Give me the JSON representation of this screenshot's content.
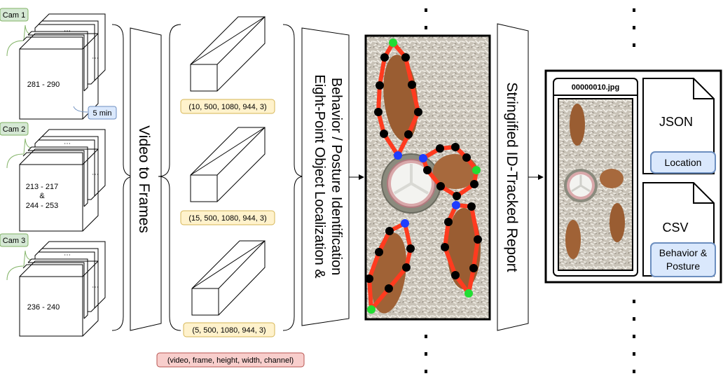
{
  "cameras": [
    {
      "label": "Cam 1",
      "range_lines": [
        "281 - 290"
      ],
      "duration": "5 min"
    },
    {
      "label": "Cam 2",
      "range_lines": [
        "213 - 217",
        "&",
        "244 - 253"
      ]
    },
    {
      "label": "Cam 3",
      "range_lines": [
        "236 - 240"
      ]
    }
  ],
  "stage_video_to_frames": "Video to Frames",
  "tensors": [
    "(10, 500, 1080, 944, 3)",
    "(15, 500, 1080, 944, 3)",
    "(5, 500, 1080, 944, 3)"
  ],
  "tensor_legend": "(video, frame, height, width, channel)",
  "stage_localization_lines": [
    "Eight-Point Object Localization &",
    "Behavior / Posture Identification"
  ],
  "stage_report": "Stringified ID-Tracked Report",
  "report": {
    "filename": "00000010.jpg",
    "json_label": "JSON",
    "json_tag": "Location",
    "csv_label": "CSV",
    "csv_tag_lines": [
      "Behavior &",
      "Posture"
    ]
  },
  "colors": {
    "green_tag": "#d5e8d4",
    "green_stroke": "#82b366",
    "blue_tag": "#dae8fc",
    "blue_stroke": "#6c8ebf",
    "yellow_tag": "#fff2cc",
    "yellow_stroke": "#d6b656",
    "red_tag": "#f8cecc",
    "red_stroke": "#b85450",
    "skeleton": "#ff3b1f",
    "keypoint_end": "#22dd33",
    "keypoint_joint": "#000000",
    "keypoint_center": "#1f3dff"
  }
}
